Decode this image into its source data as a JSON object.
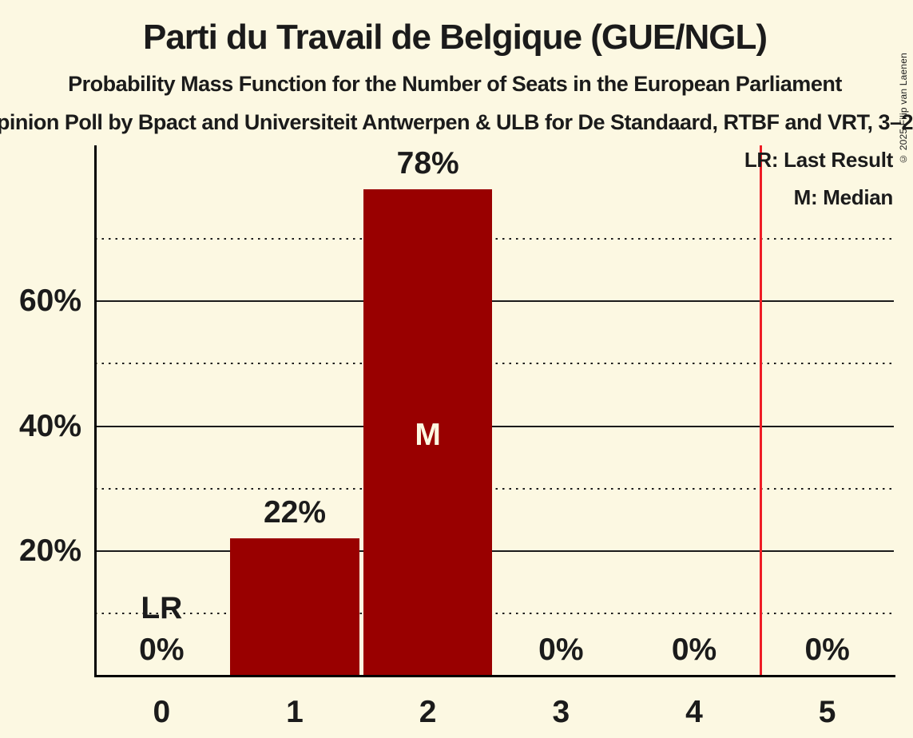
{
  "page": {
    "background_color": "#FCF8E2",
    "text_color": "#1B1B1B",
    "grid_color": "#1B1B1B",
    "axis_color": "#000000"
  },
  "header": {
    "title": "Parti du Travail de Belgique (GUE/NGL)",
    "subtitle": "Probability Mass Function for the Number of Seats in the European Parliament",
    "subtitle2": "pinion Poll by Bpact and Universiteit Antwerpen & ULB for De Standaard, RTBF and VRT, 3–2"
  },
  "copyright": "© 2025 Filip van Laenen",
  "legend": {
    "items": [
      "LR: Last Result",
      "M: Median"
    ]
  },
  "chart_data": {
    "type": "bar",
    "title": "Parti du Travail de Belgique (GUE/NGL)",
    "subtitle": "Probability Mass Function for the Number of Seats in the European Parliament",
    "categories": [
      "0",
      "1",
      "2",
      "3",
      "4",
      "5"
    ],
    "values": [
      0,
      22,
      78,
      0,
      0,
      0
    ],
    "bar_labels": [
      "0%",
      "22%",
      "78%",
      "0%",
      "0%",
      "0%"
    ],
    "xlabel": "",
    "ylabel": "",
    "ylim": [
      0,
      85
    ],
    "yticks": [
      {
        "value": 20,
        "label": "20%"
      },
      {
        "value": 40,
        "label": "40%"
      },
      {
        "value": 60,
        "label": "60%"
      }
    ],
    "solid_gridlines": [
      20,
      40,
      60
    ],
    "dotted_gridlines": [
      10,
      30,
      50,
      70
    ],
    "grid": true,
    "legend_position": "top-right",
    "bar_color": "#990000",
    "median_category_index": 2,
    "median_marker": "M",
    "median_marker_color": "#FCF8E2",
    "last_result_category_index": 0,
    "last_result_marker": "LR",
    "vertical_line_x": 4.5,
    "vertical_line_color": "#EE1C25"
  }
}
